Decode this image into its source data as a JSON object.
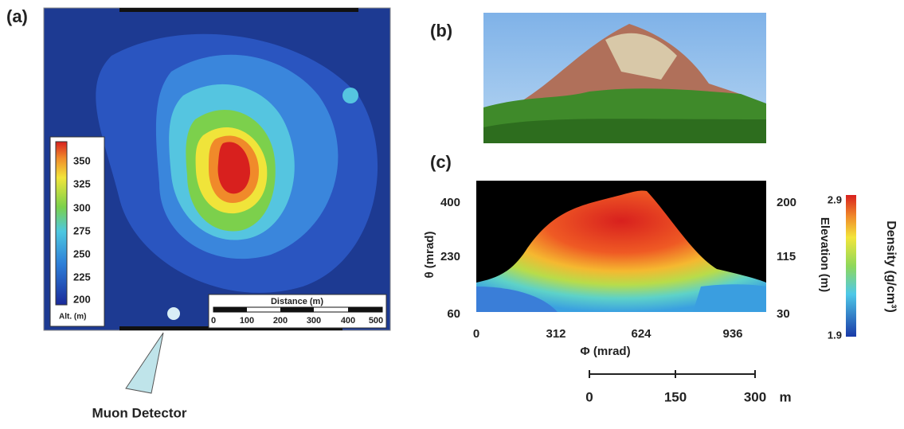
{
  "panel_a": {
    "label": "(a)",
    "colorbar": {
      "ticks": [
        "350",
        "325",
        "300",
        "275",
        "250",
        "225",
        "200"
      ],
      "unit": "Alt. (m)"
    },
    "scale_bar": {
      "title": "Distance (m)",
      "ticks": [
        "0",
        "100",
        "200",
        "300",
        "400",
        "500"
      ]
    },
    "detector_label": "Muon Detector"
  },
  "panel_b": {
    "label": "(b)"
  },
  "panel_c": {
    "label": "(c)",
    "y_label": "θ (mrad)",
    "y_ticks": [
      "400",
      "230",
      "60"
    ],
    "x_label": "Φ (mrad)",
    "x_ticks": [
      "0",
      "312",
      "624",
      "936"
    ],
    "y2_label": "Elevation (m)",
    "y2_ticks": [
      "200",
      "115",
      "30"
    ],
    "colorbar": {
      "max": "2.9",
      "min": "1.9",
      "label": "Density (g/cm³)"
    },
    "scale_bar": {
      "ticks": [
        "0",
        "150",
        "300"
      ],
      "unit": "m"
    }
  }
}
